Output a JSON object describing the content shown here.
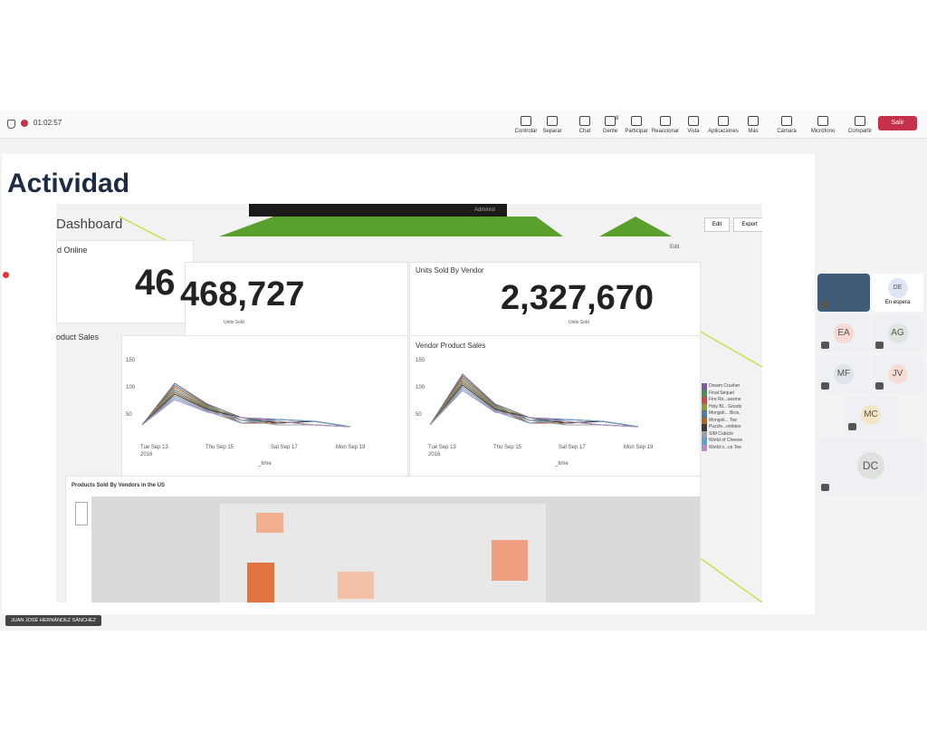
{
  "toolbar": {
    "timer": "01:02:57",
    "buttons": [
      "Controlar",
      "Separar",
      "Chat",
      "Gente",
      "Participar",
      "Reaccionar",
      "Vista",
      "Aplicaciones",
      "Más",
      "Cámara",
      "Micrófono",
      "Compartir"
    ],
    "people_count": "8",
    "leave": "Salir"
  },
  "slide": {
    "title": "Actividad",
    "dashboard": {
      "header": "Dashboard",
      "admin": "Administ",
      "buttons": [
        "Edit",
        "Export"
      ],
      "panel_edit": "Edit",
      "kpis": [
        {
          "title": "d Online",
          "value": "46"
        },
        {
          "value": "468,727",
          "label": "Units Sold"
        },
        {
          "title": "Units Sold By Vendor",
          "value": "2,327,670",
          "label": "Units Sold"
        }
      ],
      "charts": [
        {
          "title": "oduct Sales",
          "yticks": [
            "150",
            "100",
            "50"
          ],
          "xticks": [
            "Tue Sep 13",
            "Thu Sep 15",
            "Sat Sep 17",
            "Mon Sep 19"
          ],
          "year": "2016",
          "xlabel": "_time"
        },
        {
          "title": "Vendor Product Sales",
          "yticks": [
            "150",
            "100",
            "50"
          ],
          "xticks": [
            "Tue Sep 13",
            "Thu Sep 15",
            "Sat Sep 17",
            "Mon Sep 19"
          ],
          "year": "2016",
          "xlabel": "_time",
          "legend": [
            "Dream Crusher",
            "Final Sequel",
            "Fire Ro...uesme",
            "Holy Bl... Goods",
            "Mongoli... Bros.",
            "Mongoli... Tee",
            "Puzzle...ombies",
            "SIM Cubicle",
            "World of Cheese",
            "World o...ce Tee"
          ]
        }
      ],
      "map": {
        "title": "Products Sold By Vendors in the US"
      }
    }
  },
  "participants": [
    {
      "initials": "DE",
      "status": "En espera"
    },
    {
      "initials": "EA"
    },
    {
      "initials": "AG"
    },
    {
      "initials": "MF"
    },
    {
      "initials": "JV"
    },
    {
      "initials": "MC"
    },
    {
      "initials": "DC"
    }
  ],
  "presenter": "JUAN JOSÉ HERNÁNDEZ SÁNCHEZ"
}
